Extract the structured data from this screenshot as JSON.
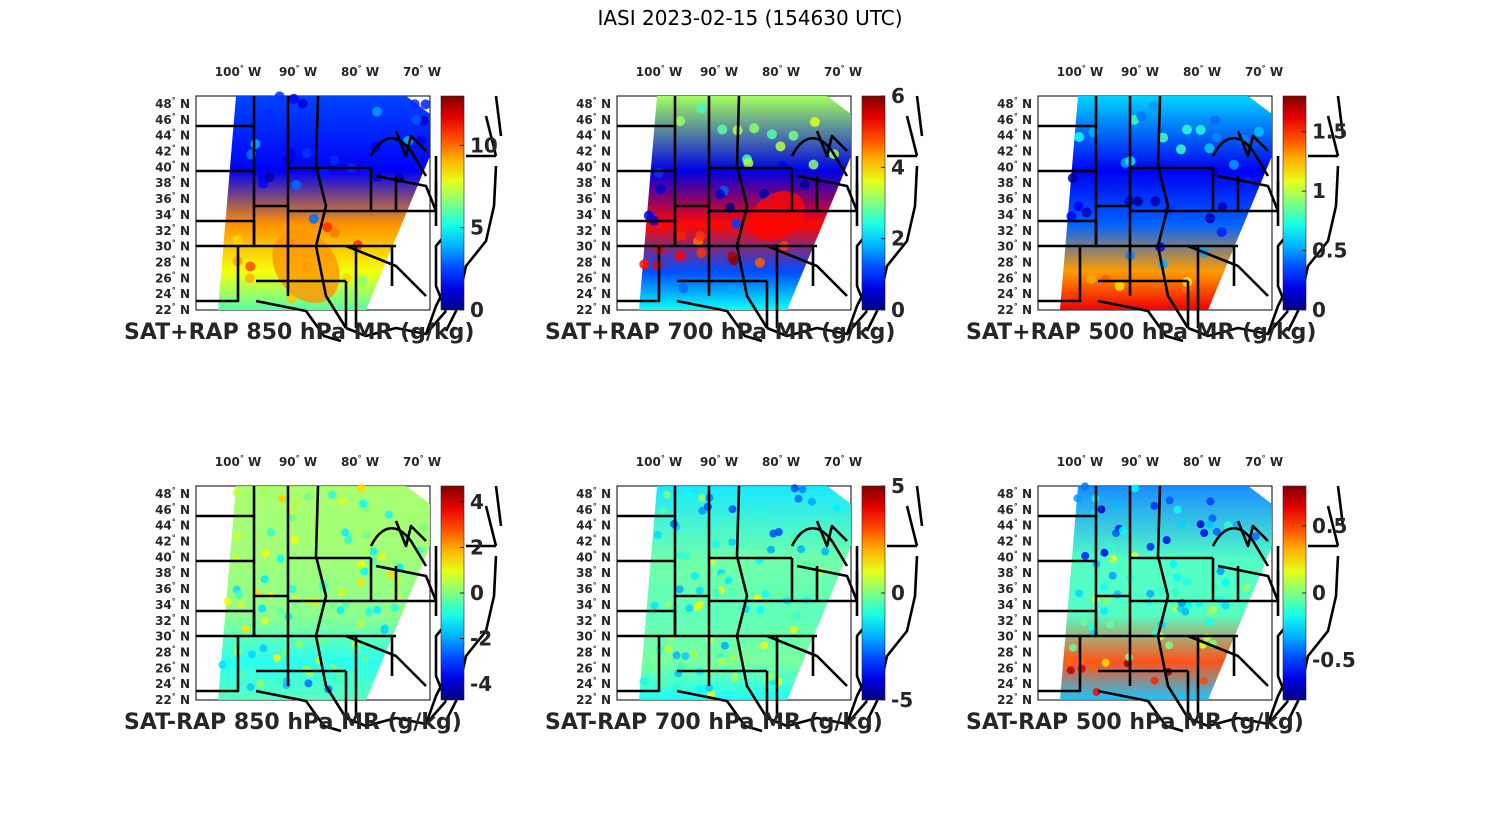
{
  "figure": {
    "title": "IASI 2023-02-15 (154630 UTC)"
  },
  "chart_data": [
    {
      "type": "heatmap",
      "title": "SAT+RAP 850 hPa MR (g/kg)",
      "xlabel": "",
      "ylabel": "",
      "x_ticks": [
        "100° W",
        "90° W",
        "80° W",
        "70° W"
      ],
      "y_ticks": [
        "48° N",
        "46° N",
        "44° N",
        "42° N",
        "40° N",
        "38° N",
        "36° N",
        "34° N",
        "32° N",
        "30° N",
        "28° N",
        "26° N",
        "24° N",
        "22° N"
      ],
      "colormap": "jet",
      "clim": [
        0,
        13
      ],
      "colorbar_ticks": [
        "0",
        "5",
        "10"
      ],
      "colorbar_tick_values": [
        0,
        5,
        10
      ],
      "regions": {
        "north": 2.5,
        "central": 1.5,
        "southeast": 9.5,
        "gulf": 8.0,
        "south_edge": 6.0
      }
    },
    {
      "type": "heatmap",
      "title": "SAT+RAP 700 hPa MR (g/kg)",
      "xlabel": "",
      "ylabel": "",
      "x_ticks": [
        "100° W",
        "90° W",
        "80° W",
        "70° W"
      ],
      "y_ticks": [
        "48° N",
        "46° N",
        "44° N",
        "42° N",
        "40° N",
        "38° N",
        "36° N",
        "34° N",
        "32° N",
        "30° N",
        "28° N",
        "26° N",
        "24° N",
        "22° N"
      ],
      "colormap": "jet",
      "clim": [
        0,
        6
      ],
      "colorbar_ticks": [
        "0",
        "2",
        "4",
        "6"
      ],
      "colorbar_tick_values": [
        0,
        2,
        4,
        6
      ],
      "regions": {
        "north": 3.2,
        "central": 0.6,
        "southeast": 5.2,
        "gulf": 1.2,
        "south_edge": 2.3
      }
    },
    {
      "type": "heatmap",
      "title": "SAT+RAP 500 hPa MR (g/kg)",
      "xlabel": "",
      "ylabel": "",
      "x_ticks": [
        "100° W",
        "90° W",
        "80° W",
        "70° W"
      ],
      "y_ticks": [
        "48° N",
        "46° N",
        "44° N",
        "42° N",
        "40° N",
        "38° N",
        "36° N",
        "34° N",
        "32° N",
        "30° N",
        "28° N",
        "26° N",
        "24° N",
        "22° N"
      ],
      "colormap": "jet",
      "clim": [
        0,
        1.8
      ],
      "colorbar_ticks": [
        "0",
        "0.5",
        "1",
        "1.5"
      ],
      "colorbar_tick_values": [
        0,
        0.5,
        1,
        1.5
      ],
      "regions": {
        "north": 0.6,
        "central": 0.2,
        "southeast": 0.4,
        "gulf": 1.3,
        "south_edge": 1.6
      }
    },
    {
      "type": "heatmap",
      "title": "SAT-RAP 850 hPa MR (g/kg)",
      "xlabel": "",
      "ylabel": "",
      "x_ticks": [
        "100° W",
        "90° W",
        "80° W",
        "70° W"
      ],
      "y_ticks": [
        "48° N",
        "46° N",
        "44° N",
        "42° N",
        "40° N",
        "38° N",
        "36° N",
        "34° N",
        "32° N",
        "30° N",
        "28° N",
        "26° N",
        "24° N",
        "22° N"
      ],
      "colormap": "jet",
      "clim": [
        -4.7,
        4.7
      ],
      "colorbar_ticks": [
        "-4",
        "-2",
        "0",
        "2",
        "4"
      ],
      "colorbar_tick_values": [
        -4,
        -2,
        0,
        2,
        4
      ],
      "regions": {
        "north": 0.3,
        "central": 0.2,
        "southeast": 0.0,
        "gulf": -1.0,
        "south_edge": -0.5
      }
    },
    {
      "type": "heatmap",
      "title": "SAT-RAP 700 hPa MR (g/kg)",
      "xlabel": "",
      "ylabel": "",
      "x_ticks": [
        "100° W",
        "90° W",
        "80° W",
        "70° W"
      ],
      "y_ticks": [
        "48° N",
        "46° N",
        "44° N",
        "42° N",
        "40° N",
        "38° N",
        "36° N",
        "34° N",
        "32° N",
        "30° N",
        "28° N",
        "26° N",
        "24° N",
        "22° N"
      ],
      "colormap": "jet",
      "clim": [
        -5,
        5
      ],
      "colorbar_ticks": [
        "-5",
        "0",
        "5"
      ],
      "colorbar_tick_values": [
        -5,
        0,
        5
      ],
      "regions": {
        "north": -1.5,
        "central": -0.3,
        "southeast": -0.5,
        "gulf": -0.2,
        "south_edge": -1.2
      }
    },
    {
      "type": "heatmap",
      "title": "SAT-RAP 500 hPa MR (g/kg)",
      "xlabel": "",
      "ylabel": "",
      "x_ticks": [
        "100° W",
        "90° W",
        "80° W",
        "70° W"
      ],
      "y_ticks": [
        "48° N",
        "46° N",
        "44° N",
        "42° N",
        "40° N",
        "38° N",
        "36° N",
        "34° N",
        "32° N",
        "30° N",
        "28° N",
        "26° N",
        "24° N",
        "22° N"
      ],
      "colormap": "jet",
      "clim": [
        -0.8,
        0.8
      ],
      "colorbar_ticks": [
        "-0.5",
        "0",
        "0.5"
      ],
      "colorbar_tick_values": [
        -0.5,
        0,
        0.5
      ],
      "regions": {
        "north": -0.4,
        "central": -0.1,
        "southeast": -0.1,
        "gulf": 0.5,
        "south_edge": -0.3
      }
    }
  ]
}
